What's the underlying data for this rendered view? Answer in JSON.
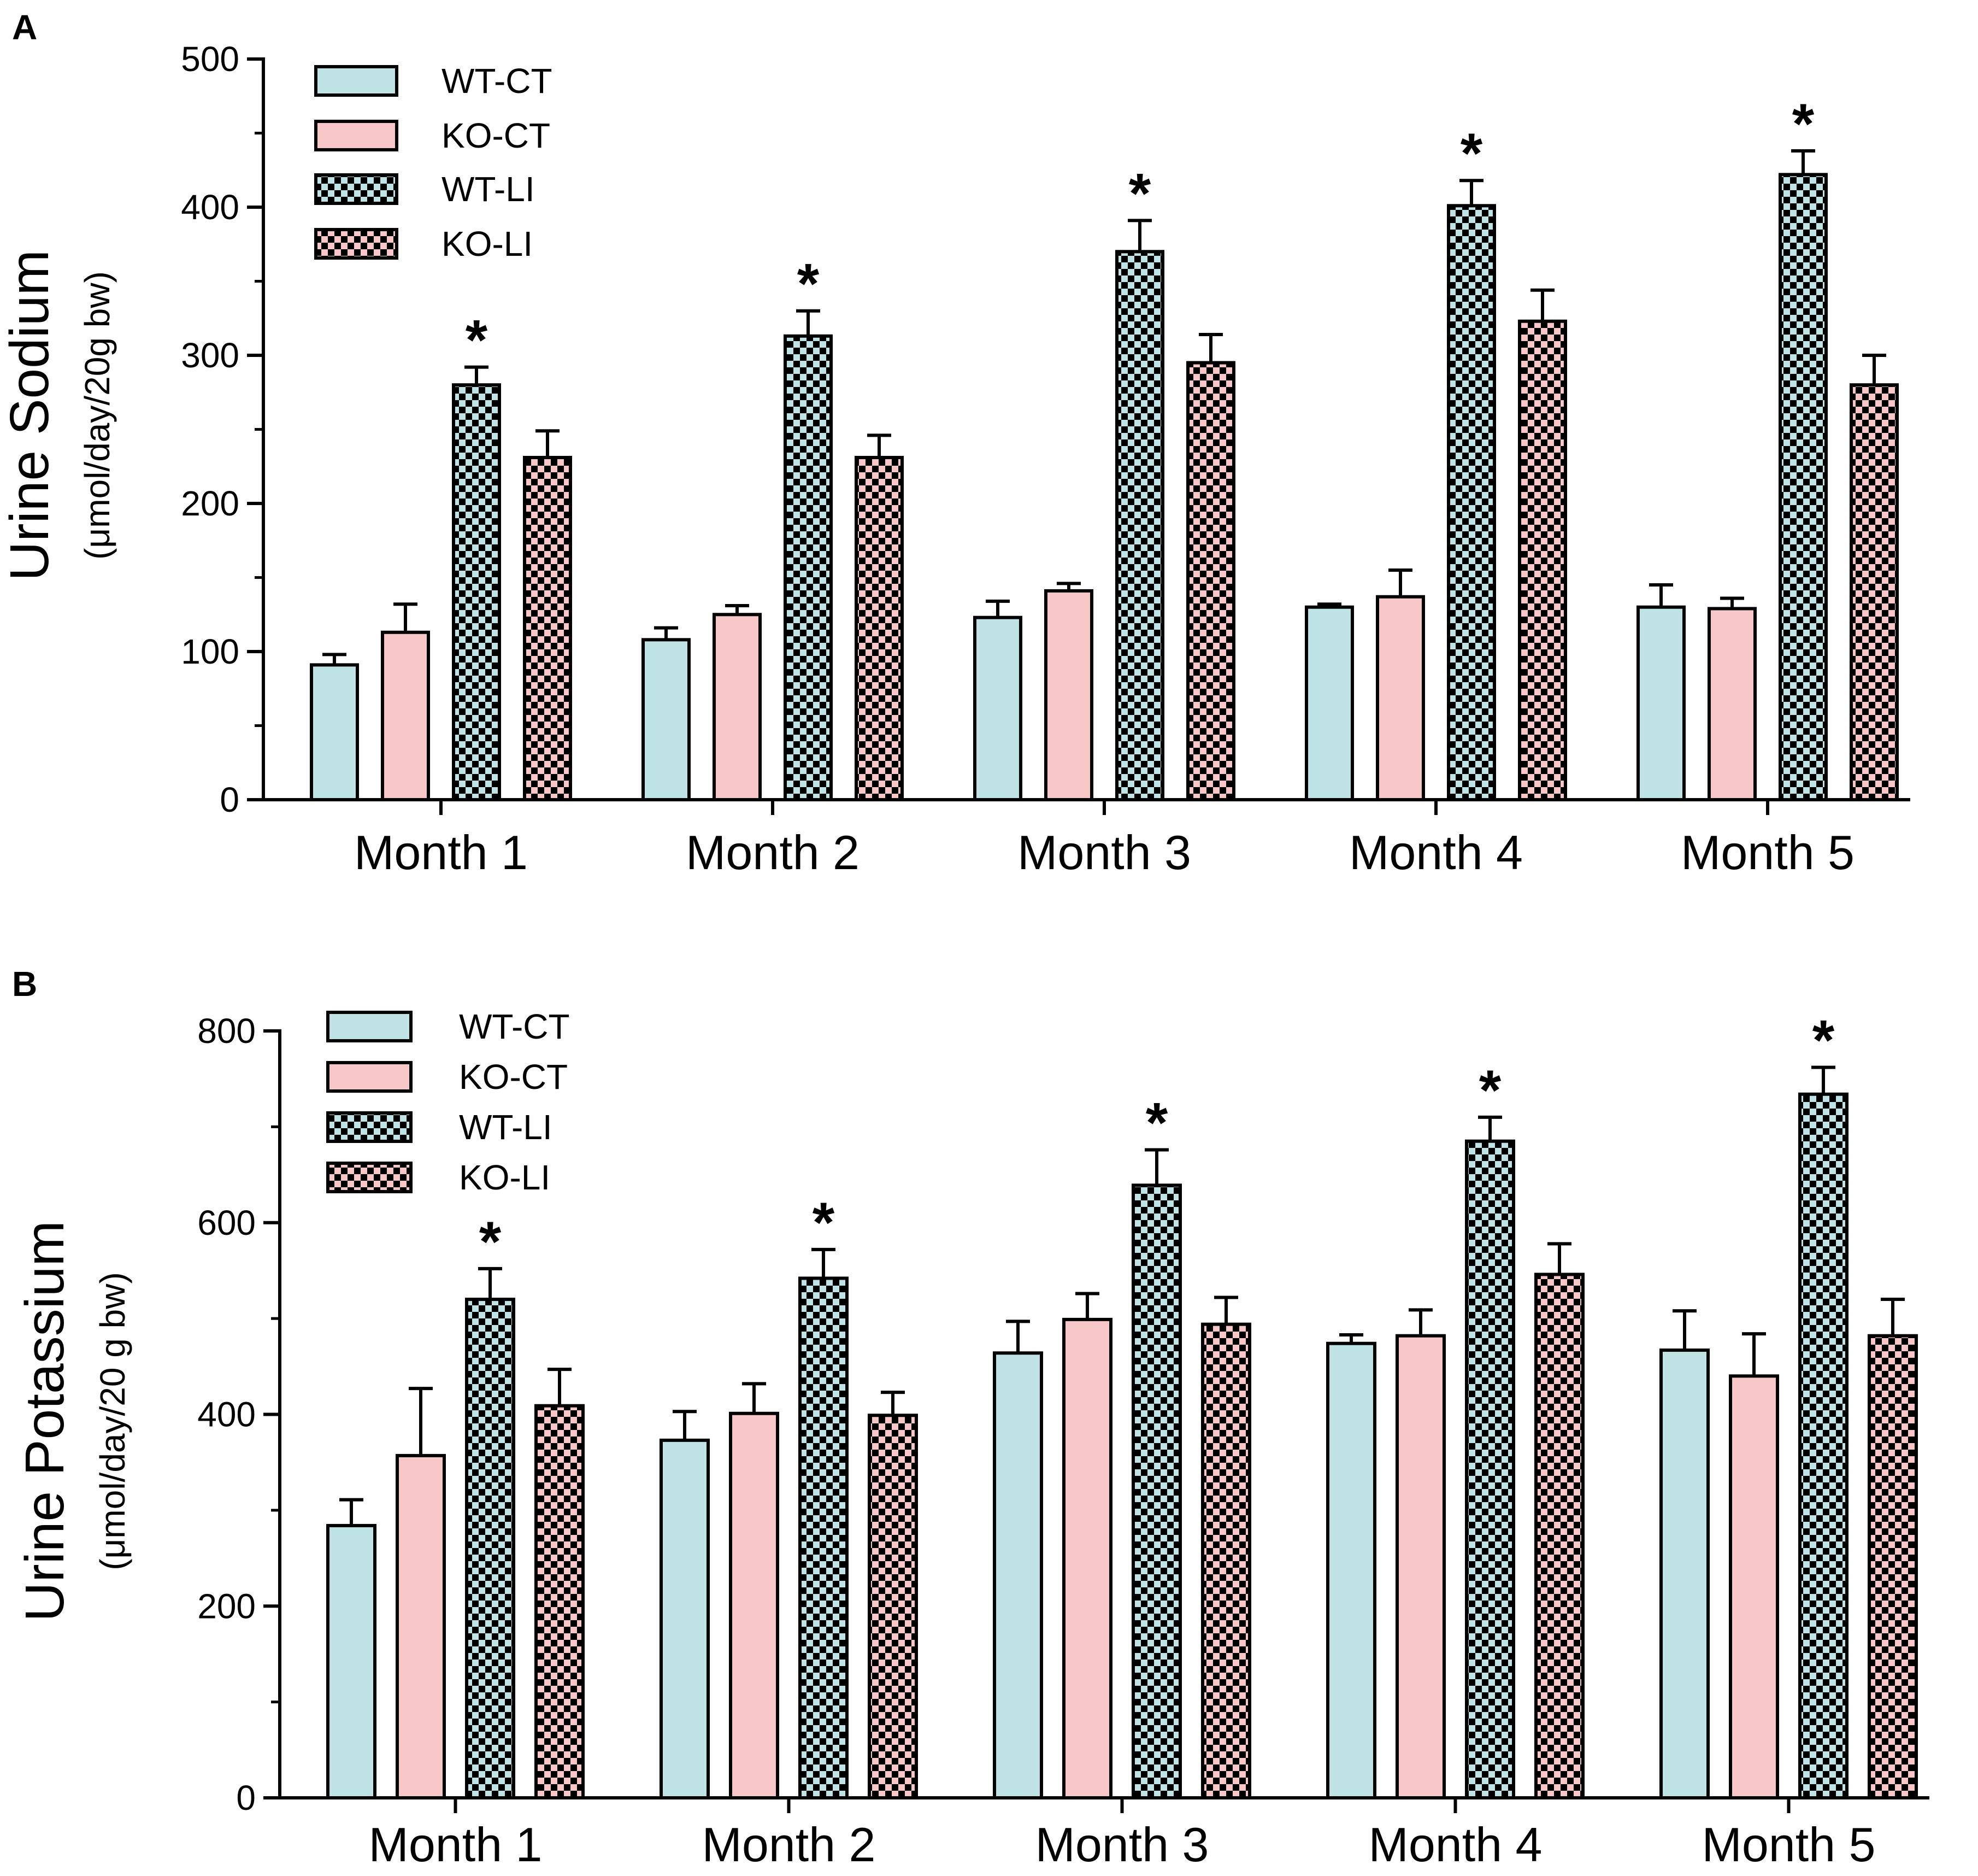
{
  "colors": {
    "wt_ct": "#bfe2e4",
    "ko_ct": "#f7c6c6",
    "dark": "#000000",
    "axis": "#000000"
  },
  "chart_data": [
    {
      "panel_label": "A",
      "type": "bar",
      "title": "",
      "ylabel": "Urine Sodium",
      "ylabel_units": "(μmol/day/20g bw)",
      "xlabel": "",
      "ylim": [
        0,
        500
      ],
      "yticks": [
        0,
        100,
        200,
        300,
        400,
        500
      ],
      "categories": [
        "Month 1",
        "Month 2",
        "Month 3",
        "Month 4",
        "Month 5"
      ],
      "series": [
        {
          "name": "WT-CT",
          "pattern": "solid",
          "color_key": "wt_ct",
          "values": [
            91,
            108,
            123,
            130,
            130
          ],
          "errors": [
            7,
            8,
            11,
            2,
            15
          ]
        },
        {
          "name": "KO-CT",
          "pattern": "solid",
          "color_key": "ko_ct",
          "values": [
            113,
            125,
            141,
            137,
            129
          ],
          "errors": [
            19,
            6,
            5,
            18,
            7
          ]
        },
        {
          "name": "WT-LI",
          "pattern": "checker",
          "color_key": "wt_ct",
          "values": [
            280,
            313,
            370,
            401,
            422
          ],
          "errors": [
            12,
            17,
            21,
            17,
            16
          ]
        },
        {
          "name": "KO-LI",
          "pattern": "checker",
          "color_key": "ko_ct",
          "values": [
            231,
            231,
            295,
            323,
            280
          ],
          "errors": [
            18,
            15,
            19,
            21,
            20
          ]
        }
      ],
      "significance": {
        "series": "WT-LI",
        "marker": "*",
        "categories": [
          "Month 1",
          "Month 2",
          "Month 3",
          "Month 4",
          "Month 5"
        ]
      },
      "legend_position": "top-left"
    },
    {
      "panel_label": "B",
      "type": "bar",
      "title": "",
      "ylabel": "Urine Potassium",
      "ylabel_units": "(μmol/day/20 g bw)",
      "xlabel": "",
      "ylim": [
        0,
        800
      ],
      "yticks": [
        0,
        200,
        400,
        600,
        800
      ],
      "categories": [
        "Month 1",
        "Month 2",
        "Month 3",
        "Month 4",
        "Month 5"
      ],
      "series": [
        {
          "name": "WT-CT",
          "pattern": "solid",
          "color_key": "wt_ct",
          "values": [
            284,
            373,
            464,
            474,
            467
          ],
          "errors": [
            27,
            30,
            33,
            9,
            41
          ]
        },
        {
          "name": "KO-CT",
          "pattern": "solid",
          "color_key": "ko_ct",
          "values": [
            357,
            401,
            499,
            482,
            440
          ],
          "errors": [
            70,
            31,
            27,
            27,
            44
          ]
        },
        {
          "name": "WT-LI",
          "pattern": "checker",
          "color_key": "wt_ct",
          "values": [
            520,
            542,
            639,
            685,
            734
          ],
          "errors": [
            32,
            30,
            37,
            25,
            28
          ]
        },
        {
          "name": "KO-LI",
          "pattern": "checker",
          "color_key": "ko_ct",
          "values": [
            409,
            399,
            494,
            546,
            482
          ],
          "errors": [
            38,
            24,
            28,
            32,
            38
          ]
        }
      ],
      "significance": {
        "series": "WT-LI",
        "marker": "*",
        "categories": [
          "Month 1",
          "Month 2",
          "Month 3",
          "Month 4",
          "Month 5"
        ]
      },
      "legend_position": "top-left"
    }
  ]
}
